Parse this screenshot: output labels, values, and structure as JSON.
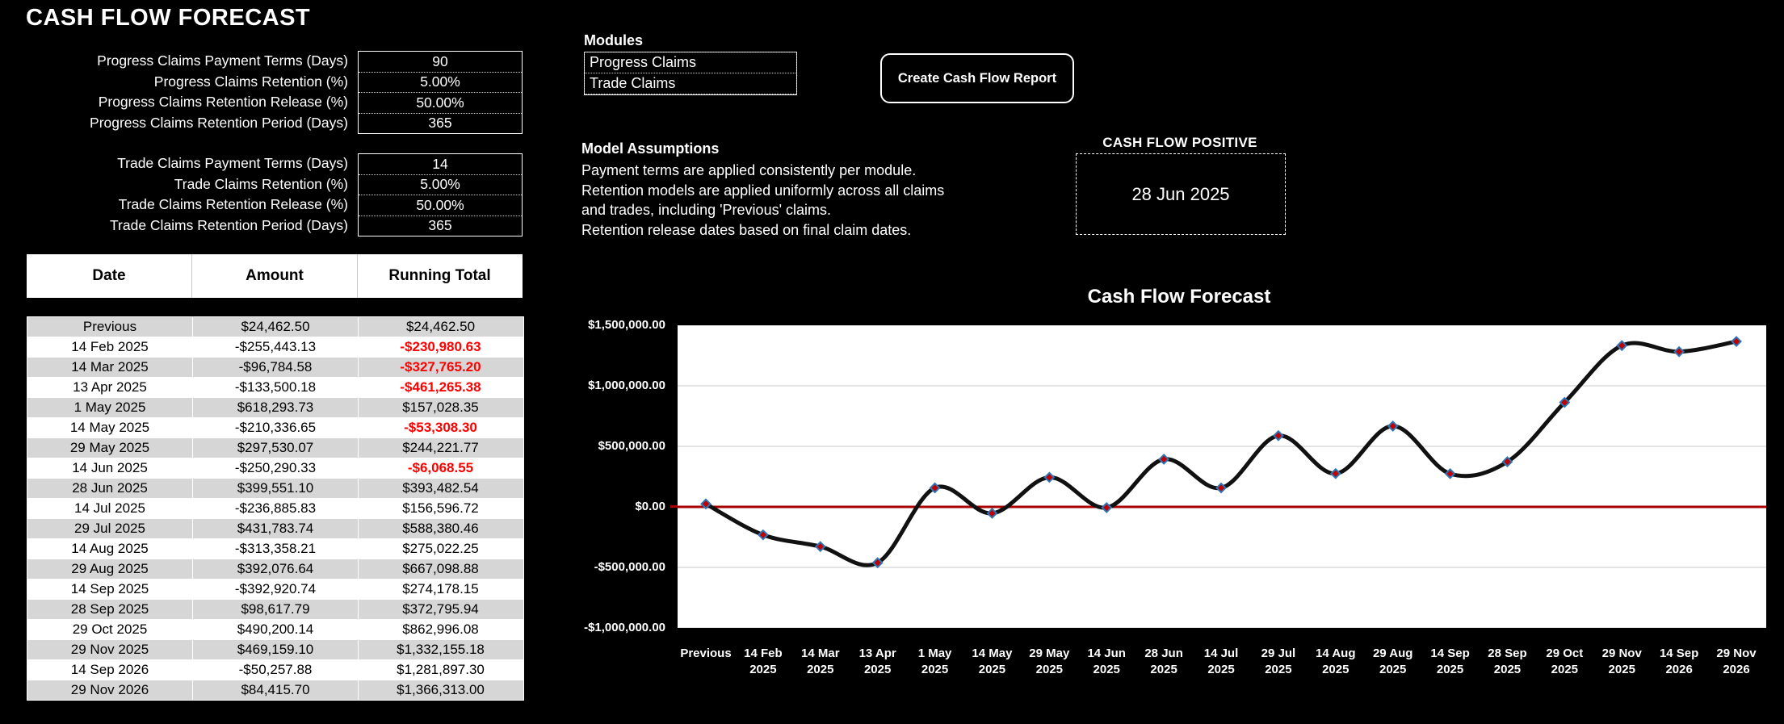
{
  "title": "CASH FLOW FORECAST",
  "params": {
    "progress": {
      "rows": [
        {
          "label": "Progress Claims Payment Terms (Days)",
          "value": "90"
        },
        {
          "label": "Progress Claims Retention (%)",
          "value": "5.00%"
        },
        {
          "label": "Progress Claims Retention Release (%)",
          "value": "50.00%"
        },
        {
          "label": "Progress Claims Retention Period (Days)",
          "value": "365"
        }
      ]
    },
    "trade": {
      "rows": [
        {
          "label": "Trade Claims Payment Terms (Days)",
          "value": "14"
        },
        {
          "label": "Trade Claims Retention (%)",
          "value": "5.00%"
        },
        {
          "label": "Trade Claims Retention Release (%)",
          "value": "50.00%"
        },
        {
          "label": "Trade Claims Retention Period (Days)",
          "value": "365"
        }
      ]
    }
  },
  "table": {
    "headers": [
      "Date",
      "Amount",
      "Running Total"
    ],
    "rows": [
      {
        "date": "Previous",
        "amount": "$24,462.50",
        "total": "$24,462.50"
      },
      {
        "date": "14 Feb 2025",
        "amount": "-$255,443.13",
        "total": "-$230,980.63"
      },
      {
        "date": "14 Mar 2025",
        "amount": "-$96,784.58",
        "total": "-$327,765.20"
      },
      {
        "date": "13 Apr 2025",
        "amount": "-$133,500.18",
        "total": "-$461,265.38"
      },
      {
        "date": "1 May 2025",
        "amount": "$618,293.73",
        "total": "$157,028.35"
      },
      {
        "date": "14 May 2025",
        "amount": "-$210,336.65",
        "total": "-$53,308.30"
      },
      {
        "date": "29 May 2025",
        "amount": "$297,530.07",
        "total": "$244,221.77"
      },
      {
        "date": "14 Jun 2025",
        "amount": "-$250,290.33",
        "total": "-$6,068.55"
      },
      {
        "date": "28 Jun 2025",
        "amount": "$399,551.10",
        "total": "$393,482.54"
      },
      {
        "date": "14 Jul 2025",
        "amount": "-$236,885.83",
        "total": "$156,596.72"
      },
      {
        "date": "29 Jul 2025",
        "amount": "$431,783.74",
        "total": "$588,380.46"
      },
      {
        "date": "14 Aug 2025",
        "amount": "-$313,358.21",
        "total": "$275,022.25"
      },
      {
        "date": "29 Aug 2025",
        "amount": "$392,076.64",
        "total": "$667,098.88"
      },
      {
        "date": "14 Sep 2025",
        "amount": "-$392,920.74",
        "total": "$274,178.15"
      },
      {
        "date": "28 Sep 2025",
        "amount": "$98,617.79",
        "total": "$372,795.94"
      },
      {
        "date": "29 Oct 2025",
        "amount": "$490,200.14",
        "total": "$862,996.08"
      },
      {
        "date": "29 Nov 2025",
        "amount": "$469,159.10",
        "total": "$1,332,155.18"
      },
      {
        "date": "14 Sep 2026",
        "amount": "-$50,257.88",
        "total": "$1,281,897.30"
      },
      {
        "date": "29 Nov 2026",
        "amount": "$84,415.70",
        "total": "$1,366,313.00"
      }
    ]
  },
  "modules": {
    "header": "Modules",
    "items": [
      "Progress Claims",
      "Trade Claims"
    ]
  },
  "report_button_label": "Create Cash Flow Report",
  "assumptions": {
    "header": "Model Assumptions",
    "lines": [
      "Payment terms are applied consistently per module.",
      "Retention models are applied uniformly across all claims",
      "and trades, including 'Previous' claims.",
      "Retention release dates based on final claim dates."
    ]
  },
  "cash_flow_positive": {
    "header": "CASH FLOW POSITIVE",
    "date": "28 Jun 2025"
  },
  "chart_data": {
    "type": "line",
    "title": "Cash Flow Forecast",
    "series_name": "Running Total",
    "categories": [
      "Previous",
      "14 Feb 2025",
      "14 Mar 2025",
      "13 Apr 2025",
      "1 May 2025",
      "14 May 2025",
      "29 May 2025",
      "14 Jun 2025",
      "28 Jun 2025",
      "14 Jul 2025",
      "29 Jul 2025",
      "14 Aug 2025",
      "29 Aug 2025",
      "14 Sep 2025",
      "28 Sep 2025",
      "29 Oct 2025",
      "29 Nov 2025",
      "14 Sep 2026",
      "29 Nov 2026"
    ],
    "values": [
      24462.5,
      -230980.63,
      -327765.2,
      -461265.38,
      157028.35,
      -53308.3,
      244221.77,
      -6068.55,
      393482.54,
      156596.72,
      588380.46,
      275022.25,
      667098.88,
      274178.15,
      372795.94,
      862996.08,
      1332155.18,
      1281897.3,
      1366313.0
    ],
    "ylim": [
      -1000000,
      1500000
    ],
    "ytick_step": 500000,
    "ytick_labels": [
      "$1,500,000.00",
      "$1,000,000.00",
      "$500,000.00",
      "$0.00",
      "-$500,000.00",
      "-$1,000,000.00"
    ],
    "grid": true,
    "smooth": true,
    "legend": "none",
    "zero_line_value": 0
  },
  "colors": {
    "background": "#000000",
    "text": "#ffffff",
    "table_alt_row": "#d6d6d6",
    "negative_value": "#ff0000",
    "chart_line": "#111111",
    "chart_marker_fill": "#c00000",
    "chart_marker_stroke": "#2e75b6",
    "chart_zero_line": "#aa0000",
    "chart_grid": "#e4e4e4",
    "chart_plot_bg": "#ffffff"
  }
}
